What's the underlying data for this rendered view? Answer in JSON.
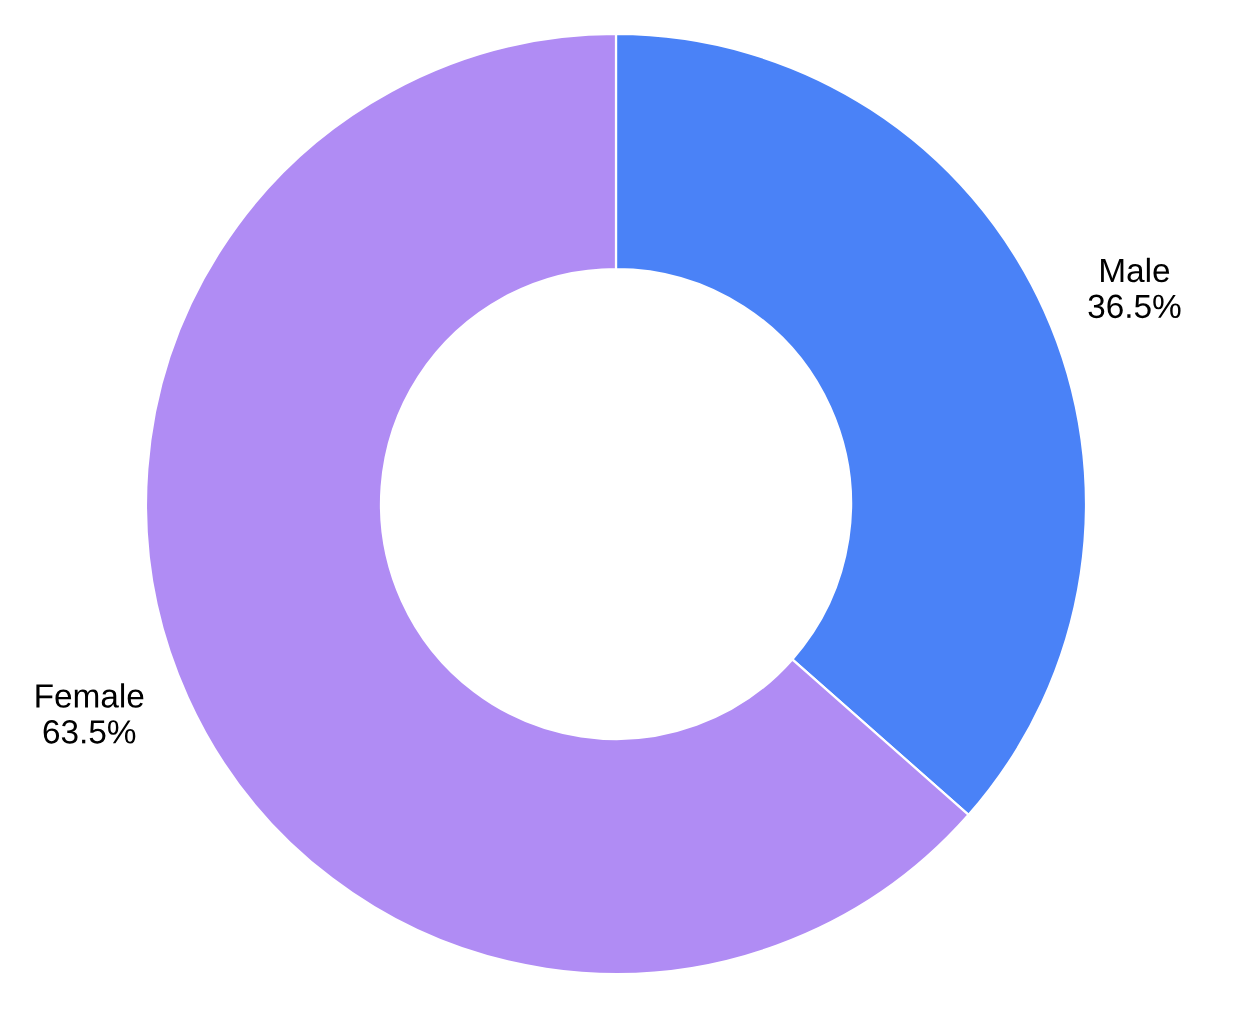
{
  "chart_data": {
    "type": "donut",
    "categories": [
      "Male",
      "Female"
    ],
    "values": [
      36.5,
      63.5
    ],
    "colors": [
      "#4a82f7",
      "#b08cf4"
    ],
    "value_labels": [
      "36.5%",
      "63.5%"
    ],
    "legend": false
  }
}
